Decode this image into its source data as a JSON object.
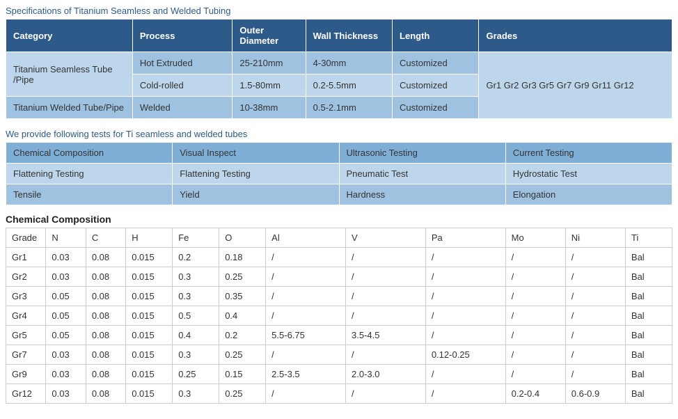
{
  "specs": {
    "title": "Specifications of Titanium Seamless and Welded Tubing",
    "headers": {
      "category": "Category",
      "process": "Process",
      "od": "Outer Diameter",
      "wall": "Wall Thickness",
      "length": "Length",
      "grades": "Grades"
    },
    "seamless_label": "Titanium Seamless Tube /Pipe",
    "welded_label": "Titanium Welded Tube/Pipe",
    "grades_value": "Gr1 Gr2 Gr3 Gr5 Gr7 Gr9 Gr11 Gr12",
    "row1": {
      "process": "Hot Extruded",
      "od": "25-210mm",
      "wall": "4-30mm",
      "length": "Customized"
    },
    "row2": {
      "process": "Cold-rolled",
      "od": "1.5-80mm",
      "wall": "0.2-5.5mm",
      "length": "Customized"
    },
    "row3": {
      "process": "Welded",
      "od": "10-38mm",
      "wall": "0.5-2.1mm",
      "length": "Customized"
    }
  },
  "tests": {
    "title": "We provide following tests for Ti seamless and welded tubes",
    "r1c1": "Chemical Composition",
    "r1c2": "Visual Inspect",
    "r1c3": "Ultrasonic Testing",
    "r1c4": "Current Testing",
    "r2c1": "Flattening Testing",
    "r2c2": "Flattening Testing",
    "r2c3": "Pneumatic Test",
    "r2c4": "Hydrostatic Test",
    "r3c1": "Tensile",
    "r3c2": "Yield",
    "r3c3": "Hardness",
    "r3c4": "Elongation"
  },
  "chem": {
    "title": "Chemical Composition",
    "headers": {
      "grade": "Grade",
      "n": "N",
      "c": "C",
      "h": "H",
      "fe": "Fe",
      "o": "O",
      "al": "Al",
      "v": "V",
      "pa": "Pa",
      "mo": "Mo",
      "ni": "Ni",
      "ti": "Ti"
    },
    "rows": {
      "gr1": {
        "grade": "Gr1",
        "n": "0.03",
        "c": "0.08",
        "h": "0.015",
        "fe": "0.2",
        "o": "0.18",
        "al": "/",
        "v": "/",
        "pa": "/",
        "mo": "/",
        "ni": "/",
        "ti": "Bal"
      },
      "gr2": {
        "grade": "Gr2",
        "n": "0.03",
        "c": "0.08",
        "h": "0.015",
        "fe": "0.3",
        "o": "0.25",
        "al": "/",
        "v": "/",
        "pa": "/",
        "mo": "/",
        "ni": "/",
        "ti": "Bal"
      },
      "gr3": {
        "grade": "Gr3",
        "n": "0.05",
        "c": "0.08",
        "h": "0.015",
        "fe": "0.3",
        "o": "0.35",
        "al": "/",
        "v": "/",
        "pa": "/",
        "mo": "/",
        "ni": "/",
        "ti": "Bal"
      },
      "gr4": {
        "grade": "Gr4",
        "n": "0.05",
        "c": "0.08",
        "h": "0.015",
        "fe": "0.5",
        "o": "0.4",
        "al": "/",
        "v": "/",
        "pa": "/",
        "mo": "/",
        "ni": "/",
        "ti": "Bal"
      },
      "gr5": {
        "grade": "Gr5",
        "n": "0.05",
        "c": "0.08",
        "h": "0.015",
        "fe": "0.4",
        "o": "0.2",
        "al": "5.5-6.75",
        "v": "3.5-4.5",
        "pa": "/",
        "mo": "/",
        "ni": "/",
        "ti": "Bal"
      },
      "gr7": {
        "grade": "Gr7",
        "n": "0.03",
        "c": "0.08",
        "h": "0.015",
        "fe": "0.3",
        "o": "0.25",
        "al": "/",
        "v": "/",
        "pa": "0.12-0.25",
        "mo": "/",
        "ni": "/",
        "ti": "Bal"
      },
      "gr9": {
        "grade": "Gr9",
        "n": "0.03",
        "c": "0.08",
        "h": "0.015",
        "fe": "0.25",
        "o": "0.15",
        "al": "2.5-3.5",
        "v": "2.0-3.0",
        "pa": "/",
        "mo": "/",
        "ni": "/",
        "ti": "Bal"
      },
      "gr12": {
        "grade": "Gr12",
        "n": "0.03",
        "c": "0.08",
        "h": "0.015",
        "fe": "0.3",
        "o": "0.25",
        "al": "/",
        "v": "/",
        "pa": "/",
        "mo": "0.2-0.4",
        "ni": "0.6-0.9",
        "ti": "Bal"
      }
    }
  }
}
